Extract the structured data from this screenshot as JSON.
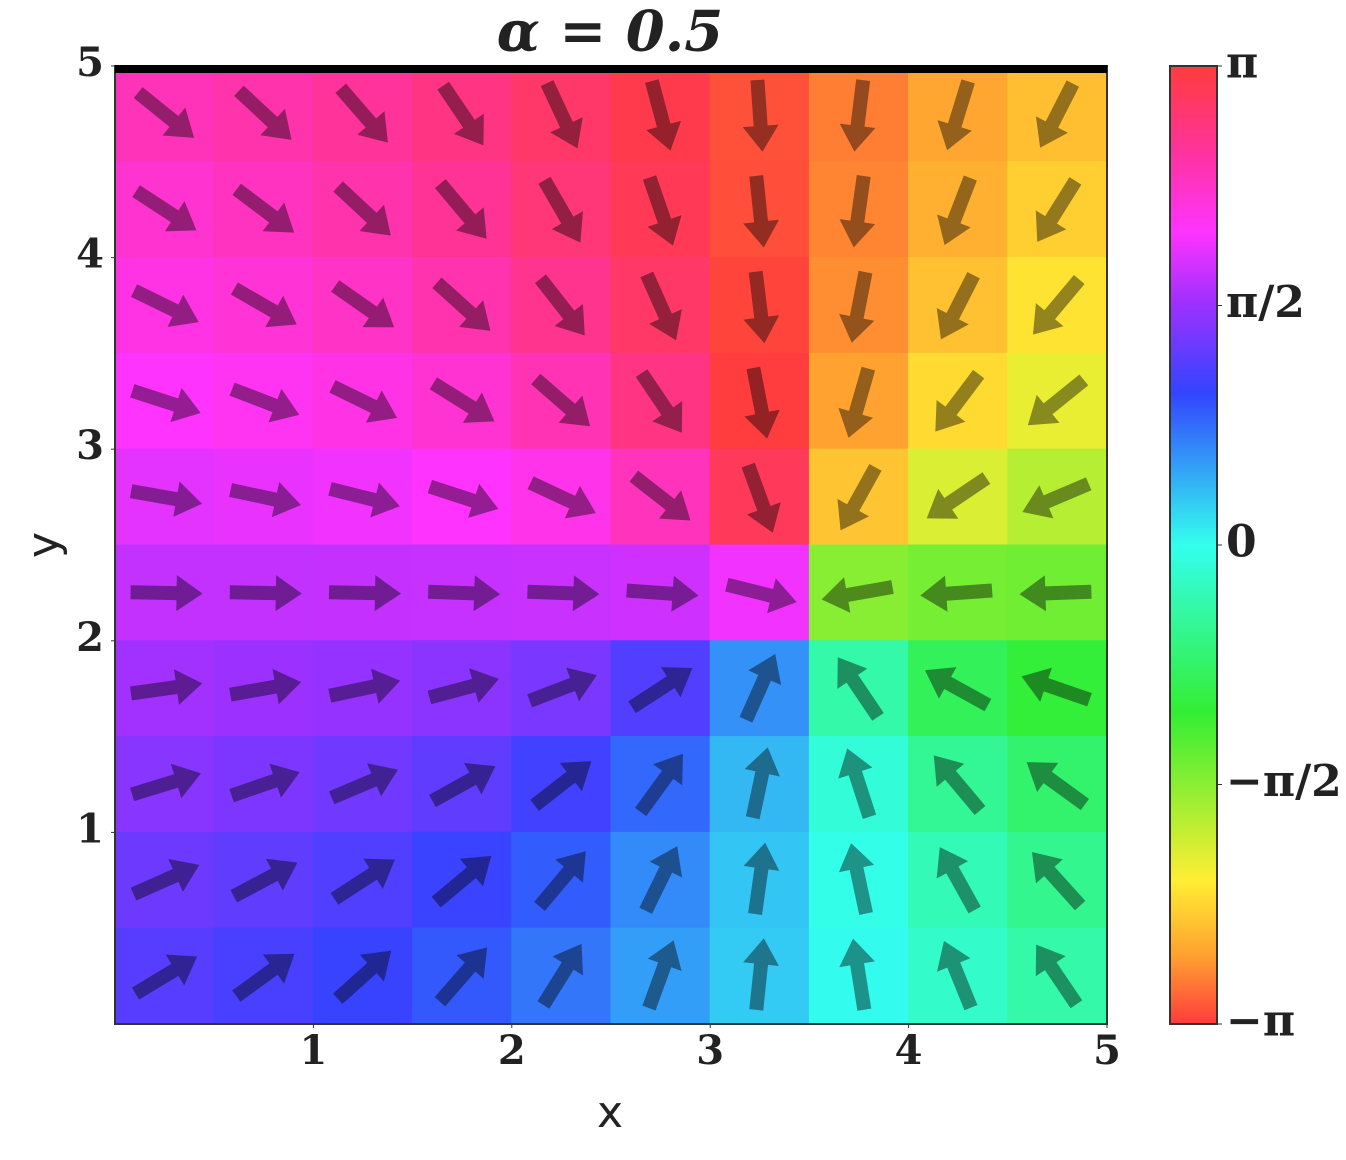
{
  "chart_data": {
    "type": "quiver",
    "title": "α = 0.5",
    "x_label": "x",
    "y_label": "y",
    "xlim": [
      0,
      5
    ],
    "ylim": [
      0,
      5
    ],
    "xticks": [
      1,
      2,
      3,
      4,
      5
    ],
    "yticks": [
      1,
      2,
      3,
      4,
      5
    ],
    "x": [
      0.25,
      0.75,
      1.25,
      1.75,
      2.25,
      2.75,
      3.25,
      3.75,
      4.25,
      4.75
    ],
    "y": [
      4.75,
      4.25,
      3.75,
      3.25,
      2.75,
      2.25,
      1.75,
      1.25,
      0.75,
      0.25
    ],
    "phase": [
      [
        2.42,
        2.5,
        2.6,
        2.73,
        2.88,
        3.05,
        -3.05,
        -2.85,
        -2.66,
        -2.5
      ],
      [
        2.31,
        2.39,
        2.5,
        2.62,
        2.79,
        2.99,
        -3.06,
        -2.82,
        -2.6,
        -2.4
      ],
      [
        2.2,
        2.27,
        2.36,
        2.49,
        2.66,
        2.89,
        -3.1,
        -2.78,
        -2.49,
        -2.27
      ],
      [
        2.06,
        2.12,
        2.19,
        2.3,
        2.46,
        2.73,
        3.13,
        -2.69,
        -2.32,
        -2.08
      ],
      [
        1.92,
        1.95,
        1.99,
        2.06,
        2.17,
        2.41,
        2.97,
        -2.47,
        -2.0,
        -1.8
      ],
      [
        1.76,
        1.76,
        1.77,
        1.78,
        1.79,
        1.82,
        1.99,
        -1.56,
        -1.46,
        -1.43
      ],
      [
        1.61,
        1.58,
        1.54,
        1.49,
        1.39,
        1.17,
        0.59,
        -0.41,
        -0.88,
        -1.06
      ],
      [
        1.46,
        1.41,
        1.34,
        1.24,
        1.08,
        0.81,
        0.38,
        -0.13,
        -0.53,
        -0.76
      ],
      [
        1.32,
        1.25,
        1.16,
        1.04,
        0.87,
        0.62,
        0.31,
        -0.03,
        -0.33,
        -0.56
      ],
      [
        1.2,
        1.12,
        1.02,
        0.89,
        0.73,
        0.52,
        0.28,
        0.02,
        -0.21,
        -0.41
      ]
    ],
    "angle": [
      [
        -39,
        -43,
        -49,
        -56,
        -65,
        -75,
        -86,
        -97,
        -107,
        -117
      ],
      [
        -33,
        -37,
        -43,
        -50,
        -60,
        -71,
        -84,
        -98,
        -111,
        -122
      ],
      [
        -26,
        -30,
        -35,
        -42,
        -52,
        -66,
        -83,
        -101,
        -117,
        -130
      ],
      [
        -18,
        -21,
        -26,
        -32,
        -41,
        -56,
        -79,
        -106,
        -127,
        -141
      ],
      [
        -10,
        -12,
        -14,
        -18,
        -25,
        -38,
        -70,
        -119,
        -146,
        -157
      ],
      [
        -1,
        -1,
        -1,
        -2,
        -2,
        -4,
        -14,
        -170,
        -176,
        -178
      ],
      [
        8,
        10,
        12,
        15,
        21,
        33,
        66,
        124,
        151,
        161
      ],
      [
        17,
        19,
        23,
        29,
        38,
        54,
        78,
        108,
        130,
        144
      ],
      [
        24,
        28,
        33,
        40,
        50,
        64,
        82,
        102,
        119,
        132
      ],
      [
        31,
        36,
        42,
        49,
        58,
        70,
        84,
        99,
        112,
        124
      ]
    ],
    "arrow_color": "rgba(0,0,0,0.42)",
    "clim": [
      -3.1416,
      3.1416
    ],
    "cticks": [
      {
        "value": 3.1416,
        "label": "π"
      },
      {
        "value": 1.5708,
        "label": "π/2"
      },
      0,
      {
        "value": -1.5708,
        "label": "−π/2"
      },
      {
        "value": -3.1416,
        "label": "−π"
      }
    ],
    "colormap": [
      {
        "value": -3.1416,
        "color": "#ff3c3c"
      },
      {
        "value": -2.7,
        "color": "#ffa030"
      },
      {
        "value": -2.2,
        "color": "#ffee33"
      },
      {
        "value": -1.1,
        "color": "#33ee33"
      },
      {
        "value": 0,
        "color": "#33ffee"
      },
      {
        "value": 1.0,
        "color": "#3344ff"
      },
      {
        "value": 1.6,
        "color": "#a030ff"
      },
      {
        "value": 2.05,
        "color": "#ff33ff"
      },
      {
        "value": 2.6,
        "color": "#ff3399"
      },
      {
        "value": 3.1416,
        "color": "#ff3c3c"
      }
    ]
  }
}
